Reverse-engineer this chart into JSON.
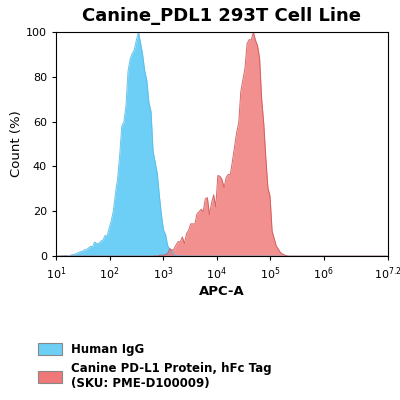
{
  "title": "Canine_PDL1 293T Cell Line",
  "xlabel": "APC-A",
  "ylabel": "Count (%)",
  "xlim_log": [
    1,
    7.2
  ],
  "ylim": [
    0,
    100
  ],
  "yticks": [
    0,
    20,
    40,
    60,
    80,
    100
  ],
  "xtick_labels": [
    "$10^1$",
    "$10^2$",
    "$10^3$",
    "$10^4$",
    "$10^5$",
    "$10^6$",
    "$10^{7.2}$"
  ],
  "xtick_positions": [
    1,
    2,
    3,
    4,
    5,
    6,
    7.2
  ],
  "blue_color": "#6dcff6",
  "blue_edge": "#5abde6",
  "red_color": "#f07878",
  "red_edge": "#d05858",
  "legend_label1": "Human IgG",
  "legend_label2": "Canine PD-L1 Protein, hFc Tag\n(SKU: PME-D100009)",
  "title_fontsize": 13,
  "axis_fontsize": 9.5,
  "tick_fontsize": 8
}
